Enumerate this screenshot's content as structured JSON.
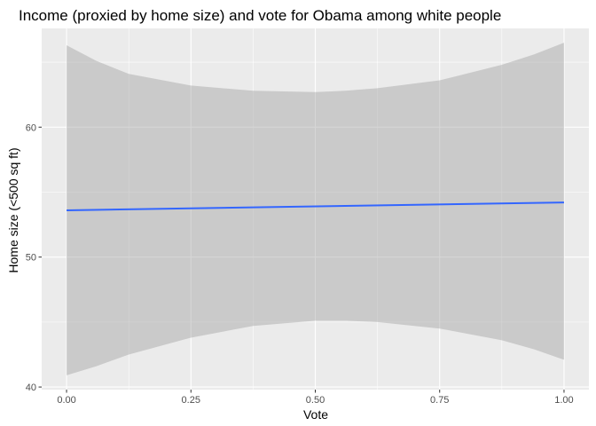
{
  "chart_data": {
    "type": "line",
    "title": "Income (proxied by home size) and vote for Obama among white people",
    "xlabel": "Vote",
    "ylabel": "Home size (<500 sq ft)",
    "xlim": [
      -0.05,
      1.05
    ],
    "ylim": [
      39.8,
      67.6
    ],
    "x_ticks": [
      0.0,
      0.25,
      0.5,
      0.75,
      1.0
    ],
    "x_tick_labels": [
      "0.00",
      "0.25",
      "0.50",
      "0.75",
      "1.00"
    ],
    "y_ticks": [
      40,
      50,
      60
    ],
    "y_tick_labels": [
      "40",
      "50",
      "60"
    ],
    "grid": true,
    "legend": "none",
    "series": [
      {
        "type": "line",
        "x": [
          0.0,
          1.0
        ],
        "y": [
          53.6,
          54.2
        ],
        "color": "#3366FF"
      }
    ],
    "ribbon": {
      "color": "#999999",
      "opacity": 0.4,
      "x": [
        0.0,
        0.06,
        0.125,
        0.25,
        0.375,
        0.5,
        0.56,
        0.625,
        0.75,
        0.875,
        0.94,
        1.0
      ],
      "lower": [
        40.9,
        41.6,
        42.5,
        43.8,
        44.7,
        45.1,
        45.1,
        45.0,
        44.5,
        43.6,
        42.9,
        42.1
      ],
      "upper": [
        66.3,
        65.1,
        64.1,
        63.2,
        62.8,
        62.7,
        62.8,
        63.0,
        63.6,
        64.8,
        65.6,
        66.5
      ]
    },
    "colors": {
      "panel_background": "#EBEBEB",
      "grid_major": "#FFFFFF",
      "tick_text": "#4D4D4D",
      "tick_mark": "#333333"
    }
  }
}
